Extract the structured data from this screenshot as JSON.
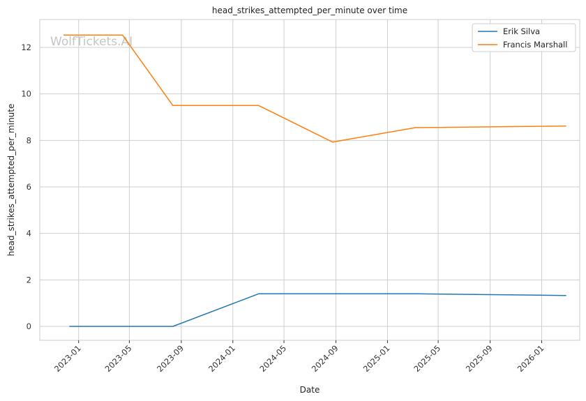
{
  "watermark": "WolfTickets.AI",
  "chart_data": {
    "type": "line",
    "title": "head_strikes_attempted_per_minute over time",
    "xlabel": "Date",
    "ylabel": "head_strikes_attempted_per_minute",
    "grid": true,
    "legend_position": "top-right",
    "xlim": [
      "2022-10-01",
      "2026-04-01"
    ],
    "ylim": [
      -0.6,
      13.2
    ],
    "x_ticks": [
      "2023-01",
      "2023-05",
      "2023-09",
      "2024-01",
      "2024-05",
      "2024-09",
      "2025-01",
      "2025-05",
      "2025-09",
      "2026-01"
    ],
    "y_ticks": [
      0,
      2,
      4,
      6,
      8,
      10,
      12
    ],
    "series": [
      {
        "name": "Erik Silva",
        "color": "#1f77b4",
        "points": [
          {
            "x": "2022-12-10",
            "y": 0.0
          },
          {
            "x": "2023-08-12",
            "y": 0.0
          },
          {
            "x": "2024-03-02",
            "y": 1.4
          },
          {
            "x": "2025-03-08",
            "y": 1.4
          },
          {
            "x": "2026-02-28",
            "y": 1.33
          }
        ]
      },
      {
        "name": "Francis Marshall",
        "color": "#ff7f0e",
        "points": [
          {
            "x": "2022-11-26",
            "y": 12.53
          },
          {
            "x": "2023-04-15",
            "y": 12.53
          },
          {
            "x": "2023-08-12",
            "y": 9.5
          },
          {
            "x": "2024-03-02",
            "y": 9.5
          },
          {
            "x": "2024-08-24",
            "y": 7.93
          },
          {
            "x": "2025-03-08",
            "y": 8.55
          },
          {
            "x": "2026-02-28",
            "y": 8.62
          }
        ]
      }
    ]
  }
}
